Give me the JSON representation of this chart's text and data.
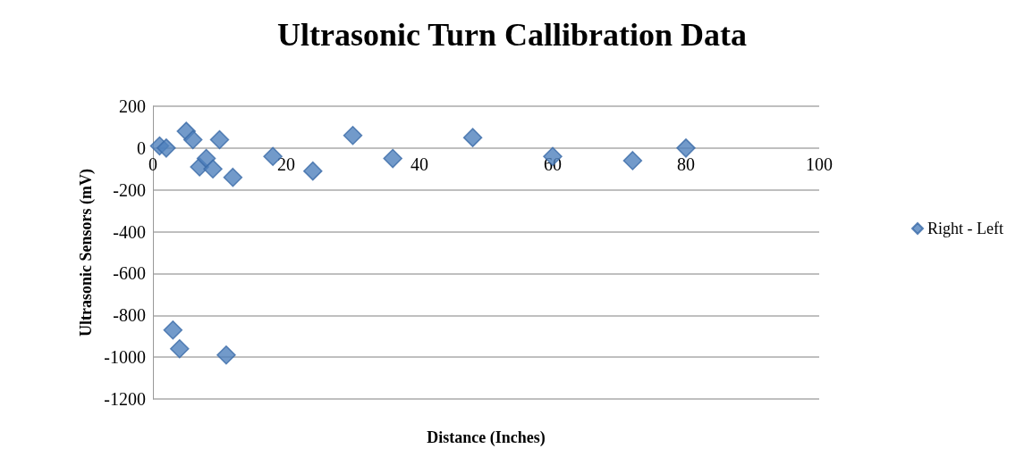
{
  "chart_data": {
    "type": "scatter",
    "title": "Ultrasonic Turn Callibration Data",
    "xlabel": "Distance (Inches)",
    "ylabel": "Ultrasonic Sensors (mV)",
    "series": [
      {
        "name": "Right - Left",
        "color": "#4f81bd",
        "x": [
          1,
          2,
          3,
          4,
          5,
          6,
          7,
          8,
          9,
          10,
          11,
          12,
          18,
          24,
          30,
          36,
          48,
          60,
          72,
          80
        ],
        "values": [
          10,
          0,
          -870,
          -960,
          80,
          40,
          -90,
          -50,
          -100,
          40,
          -990,
          -140,
          -40,
          -110,
          60,
          -50,
          50,
          -40,
          -60,
          0
        ]
      }
    ],
    "xlim": [
      0,
      100
    ],
    "xticks": [
      0,
      20,
      40,
      60,
      80,
      100
    ],
    "ylim": [
      -1200,
      200
    ],
    "yticks": [
      -1200,
      -1000,
      -800,
      -600,
      -400,
      -200,
      0,
      200
    ],
    "grid": "y",
    "legend": "right",
    "marker": "diamond"
  }
}
